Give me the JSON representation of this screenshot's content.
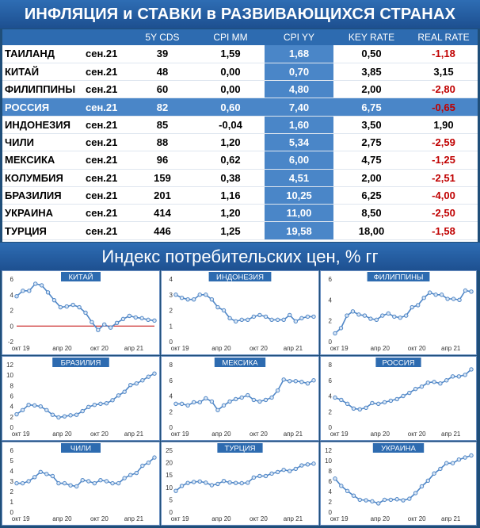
{
  "header": {
    "title": "ИНФЛЯЦИЯ и СТАВКИ в РАЗВИВАЮЩИХСЯ СТРАНАХ"
  },
  "table": {
    "columns": [
      "",
      "",
      "5Y CDS",
      "CPI MM",
      "CPI YY",
      "KEY RATE",
      "REAL RATE"
    ],
    "rows": [
      {
        "country": "ТАИЛАНД",
        "date": "сен.21",
        "cds": "39",
        "cpi_mm": "1,59",
        "cpi_yy": "1,68",
        "key_rate": "0,50",
        "real_rate": "-1,18",
        "negative": true
      },
      {
        "country": "КИТАЙ",
        "date": "сен.21",
        "cds": "48",
        "cpi_mm": "0,00",
        "cpi_yy": "0,70",
        "key_rate": "3,85",
        "real_rate": "3,15",
        "negative": false
      },
      {
        "country": "ФИЛИППИНЫ",
        "date": "сен.21",
        "cds": "60",
        "cpi_mm": "0,00",
        "cpi_yy": "4,80",
        "key_rate": "2,00",
        "real_rate": "-2,80",
        "negative": true
      },
      {
        "country": "РОССИЯ",
        "date": "сен.21",
        "cds": "82",
        "cpi_mm": "0,60",
        "cpi_yy": "7,40",
        "key_rate": "6,75",
        "real_rate": "-0,65",
        "negative": true,
        "highlight": true
      },
      {
        "country": "ИНДОНЕЗИЯ",
        "date": "сен.21",
        "cds": "85",
        "cpi_mm": "-0,04",
        "cpi_yy": "1,60",
        "key_rate": "3,50",
        "real_rate": "1,90",
        "negative": false
      },
      {
        "country": "ЧИЛИ",
        "date": "сен.21",
        "cds": "88",
        "cpi_mm": "1,20",
        "cpi_yy": "5,34",
        "key_rate": "2,75",
        "real_rate": "-2,59",
        "negative": true
      },
      {
        "country": "МЕКСИКА",
        "date": "сен.21",
        "cds": "96",
        "cpi_mm": "0,62",
        "cpi_yy": "6,00",
        "key_rate": "4,75",
        "real_rate": "-1,25",
        "negative": true
      },
      {
        "country": "КОЛУМБИЯ",
        "date": "сен.21",
        "cds": "159",
        "cpi_mm": "0,38",
        "cpi_yy": "4,51",
        "key_rate": "2,00",
        "real_rate": "-2,51",
        "negative": true
      },
      {
        "country": "БРАЗИЛИЯ",
        "date": "сен.21",
        "cds": "201",
        "cpi_mm": "1,16",
        "cpi_yy": "10,25",
        "key_rate": "6,25",
        "real_rate": "-4,00",
        "negative": true
      },
      {
        "country": "УКРАИНА",
        "date": "сен.21",
        "cds": "414",
        "cpi_mm": "1,20",
        "cpi_yy": "11,00",
        "key_rate": "8,50",
        "real_rate": "-2,50",
        "negative": true
      },
      {
        "country": "ТУРЦИЯ",
        "date": "сен.21",
        "cds": "446",
        "cpi_mm": "1,25",
        "cpi_yy": "19,58",
        "key_rate": "18,00",
        "real_rate": "-1,58",
        "negative": true
      }
    ]
  },
  "subheader": {
    "title": "Индекс потребительских цен, % гг"
  },
  "colors": {
    "line": "#4f86c6",
    "marker_fill": "#d9e6f5",
    "zero_line": "#c00000",
    "title_bar": "#2d6bb0"
  },
  "chart_data": [
    {
      "type": "line",
      "title": "КИТАЙ",
      "x_ticks": [
        "окт 19",
        "апр 20",
        "окт 20",
        "апр 21"
      ],
      "ylim": [
        -2,
        6
      ],
      "y_ticks": [
        -2,
        0,
        2,
        4,
        6
      ],
      "zero_line": true,
      "values": [
        3.8,
        4.5,
        4.5,
        5.4,
        5.2,
        4.3,
        3.3,
        2.4,
        2.5,
        2.7,
        2.4,
        1.7,
        0.5,
        -0.5,
        0.2,
        -0.2,
        0.4,
        0.9,
        1.3,
        1.1,
        1.0,
        0.8,
        0.7
      ]
    },
    {
      "type": "line",
      "title": "ИНДОНЕЗИЯ",
      "x_ticks": [
        "окт 19",
        "апр 20",
        "окт 20",
        "апр 21"
      ],
      "ylim": [
        0,
        4
      ],
      "y_ticks": [
        0,
        1,
        2,
        3,
        4
      ],
      "values": [
        3.0,
        2.8,
        2.7,
        2.7,
        3.0,
        3.0,
        2.7,
        2.2,
        2.0,
        1.5,
        1.3,
        1.4,
        1.4,
        1.6,
        1.7,
        1.6,
        1.4,
        1.4,
        1.4,
        1.7,
        1.3,
        1.5,
        1.6,
        1.6
      ]
    },
    {
      "type": "line",
      "title": "ФИЛИППИНЫ",
      "x_ticks": [
        "окт 19",
        "апр 20",
        "окт 20",
        "апр 21"
      ],
      "ylim": [
        0,
        6
      ],
      "y_ticks": [
        0,
        2,
        4,
        6
      ],
      "values": [
        0.8,
        1.3,
        2.5,
        2.9,
        2.6,
        2.5,
        2.2,
        2.1,
        2.5,
        2.7,
        2.4,
        2.3,
        2.5,
        3.3,
        3.5,
        4.2,
        4.7,
        4.5,
        4.5,
        4.1,
        4.1,
        4.0,
        4.9,
        4.8
      ]
    },
    {
      "type": "line",
      "title": "БРАЗИЛИЯ",
      "x_ticks": [
        "окт 19",
        "апр 20",
        "окт 20",
        "апр 21"
      ],
      "ylim": [
        0,
        12
      ],
      "y_ticks": [
        0,
        2,
        4,
        6,
        8,
        10,
        12
      ],
      "values": [
        2.5,
        3.3,
        4.3,
        4.2,
        4.0,
        3.3,
        2.4,
        1.9,
        2.1,
        2.3,
        2.4,
        3.1,
        3.9,
        4.3,
        4.5,
        4.6,
        5.2,
        6.1,
        6.8,
        8.1,
        8.4,
        9.0,
        9.7,
        10.3
      ]
    },
    {
      "type": "line",
      "title": "МЕКСИКА",
      "x_ticks": [
        "окт 19",
        "апр 20",
        "окт 20",
        "апр 21"
      ],
      "ylim": [
        0,
        8
      ],
      "y_ticks": [
        0,
        2,
        4,
        6,
        8
      ],
      "values": [
        3.0,
        3.0,
        2.8,
        3.2,
        3.2,
        3.7,
        3.3,
        2.2,
        2.8,
        3.3,
        3.6,
        3.8,
        4.1,
        3.5,
        3.3,
        3.5,
        3.8,
        4.7,
        6.1,
        5.9,
        5.9,
        5.8,
        5.6,
        6.0
      ]
    },
    {
      "type": "line",
      "title": "РОССИЯ",
      "x_ticks": [
        "окт 19",
        "апр 20",
        "окт 20",
        "апр 21"
      ],
      "ylim": [
        0,
        8
      ],
      "y_ticks": [
        0,
        2,
        4,
        6,
        8
      ],
      "values": [
        3.8,
        3.5,
        3.0,
        2.4,
        2.3,
        2.5,
        3.1,
        3.0,
        3.2,
        3.4,
        3.6,
        4.0,
        4.4,
        4.9,
        5.2,
        5.7,
        5.8,
        5.6,
        6.0,
        6.5,
        6.5,
        6.7,
        7.4
      ]
    },
    {
      "type": "line",
      "title": "ЧИЛИ",
      "x_ticks": [
        "окт 19",
        "апр 20",
        "окт 20",
        "апр 21"
      ],
      "ylim": [
        0,
        6
      ],
      "y_ticks": [
        0,
        1,
        2,
        3,
        4,
        5,
        6
      ],
      "values": [
        2.8,
        2.8,
        3.0,
        3.4,
        3.9,
        3.7,
        3.5,
        2.8,
        2.8,
        2.6,
        2.5,
        3.1,
        3.0,
        2.8,
        3.1,
        3.0,
        2.8,
        2.8,
        3.3,
        3.6,
        3.8,
        4.5,
        4.8,
        5.3
      ]
    },
    {
      "type": "line",
      "title": "ТУРЦИЯ",
      "x_ticks": [
        "окт 19",
        "апр 20",
        "окт 20",
        "апр 21"
      ],
      "ylim": [
        0,
        25
      ],
      "y_ticks": [
        0,
        5,
        10,
        15,
        20,
        25
      ],
      "values": [
        8.6,
        10.6,
        11.8,
        12.2,
        12.4,
        11.9,
        10.9,
        11.4,
        12.6,
        12.0,
        11.8,
        11.7,
        11.9,
        14.0,
        14.6,
        14.6,
        15.6,
        16.2,
        17.1,
        16.6,
        17.5,
        18.9,
        19.3,
        19.6
      ]
    },
    {
      "type": "line",
      "title": "УКРАИНА",
      "x_ticks": [
        "окт 19",
        "апр 20",
        "окт 20",
        "апр 21"
      ],
      "ylim": [
        0,
        12
      ],
      "y_ticks": [
        0,
        2,
        4,
        6,
        8,
        10,
        12
      ],
      "values": [
        6.5,
        5.1,
        4.1,
        3.2,
        2.4,
        2.3,
        2.1,
        1.7,
        2.4,
        2.4,
        2.5,
        2.3,
        2.6,
        3.7,
        5.0,
        6.1,
        7.5,
        8.4,
        9.5,
        9.5,
        10.2,
        10.6,
        11.0
      ]
    }
  ]
}
